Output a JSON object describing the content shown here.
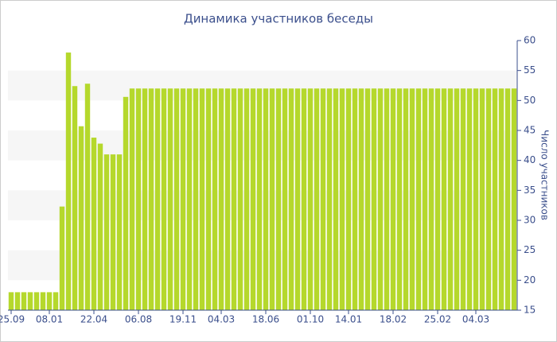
{
  "chart_data": {
    "type": "bar",
    "title": "Динамика участников беседы",
    "y_label": "Число участников",
    "categories": [
      "25.09",
      null,
      null,
      null,
      null,
      null,
      "08.01",
      null,
      null,
      null,
      null,
      null,
      null,
      "22.04",
      null,
      null,
      null,
      null,
      null,
      null,
      "06.08",
      null,
      null,
      null,
      null,
      null,
      null,
      "19.11",
      null,
      null,
      null,
      null,
      null,
      "04.03",
      null,
      null,
      null,
      null,
      null,
      null,
      "18.06",
      null,
      null,
      null,
      null,
      null,
      null,
      "01.10",
      null,
      null,
      null,
      null,
      null,
      "14.01",
      null,
      null,
      null,
      null,
      null,
      null,
      "18.02",
      null,
      null,
      null,
      null,
      null,
      null,
      "25.02",
      null,
      null,
      null,
      null,
      null,
      "04.03",
      null,
      null,
      null,
      null,
      null,
      null
    ],
    "values": [
      18,
      18,
      18,
      18,
      18,
      18,
      18,
      18,
      32.3,
      58,
      52.4,
      45.7,
      52.8,
      43.8,
      42.8,
      41,
      41,
      41,
      50.6,
      52,
      52,
      52,
      52,
      52,
      52,
      52,
      52,
      52,
      52,
      52,
      52,
      52,
      52,
      52,
      52,
      52,
      52,
      52,
      52,
      52,
      52,
      52,
      52,
      52,
      52,
      52,
      52,
      52,
      52,
      52,
      52,
      52,
      52,
      52,
      52,
      52,
      52,
      52,
      52,
      52,
      52,
      52,
      52,
      52,
      52,
      52,
      52,
      52,
      52,
      52,
      52,
      52,
      52,
      52,
      52,
      52,
      52,
      52,
      52,
      52
    ],
    "color": "#b5d82c",
    "ylim": [
      15,
      60
    ],
    "yticks": [
      15,
      20,
      25,
      30,
      35,
      40,
      45,
      50,
      55,
      60
    ],
    "grid": true,
    "y_axis_side": "right"
  }
}
